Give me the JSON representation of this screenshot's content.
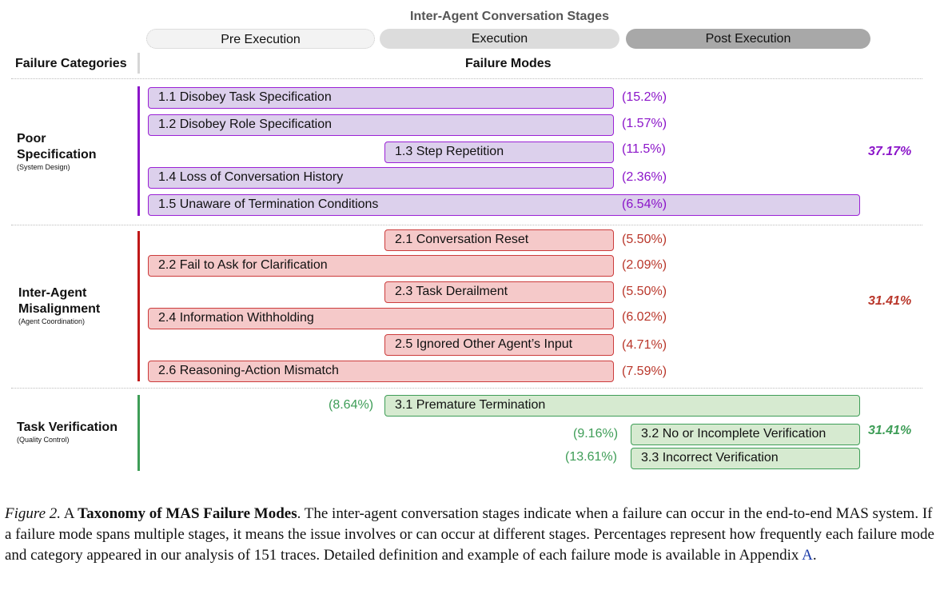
{
  "stages": {
    "title": "Inter-Agent Conversation Stages",
    "items": [
      "Pre Execution",
      "Execution",
      "Post Execution"
    ]
  },
  "headers": {
    "categories": "Failure Categories",
    "modes": "Failure Modes"
  },
  "categories": [
    {
      "title_line1": "Poor",
      "title_line2": "Specification",
      "subtitle": "(System Design)",
      "total": "37.17%",
      "color": "#8b15c9",
      "modes": [
        {
          "label": "1.1 Disobey Task Specification",
          "pct": "(15.2%)"
        },
        {
          "label": "1.2 Disobey Role Specification",
          "pct": "(1.57%)"
        },
        {
          "label": "1.3 Step Repetition",
          "pct": "(11.5%)"
        },
        {
          "label": "1.4 Loss of Conversation History",
          "pct": "(2.36%)"
        },
        {
          "label": "1.5 Unaware of Termination Conditions",
          "pct": "(6.54%)"
        }
      ]
    },
    {
      "title_line1": "Inter-Agent",
      "title_line2": "Misalignment",
      "subtitle": "(Agent Coordination)",
      "total": "31.41%",
      "color": "#b9362a",
      "modes": [
        {
          "label": "2.1 Conversation Reset",
          "pct": "(5.50%)"
        },
        {
          "label": "2.2 Fail to Ask for Clarification",
          "pct": "(2.09%)"
        },
        {
          "label": "2.3 Task Derailment",
          "pct": "(5.50%)"
        },
        {
          "label": "2.4 Information Withholding",
          "pct": "(6.02%)"
        },
        {
          "label": "2.5 Ignored Other Agent’s Input",
          "pct": "(4.71%)"
        },
        {
          "label": "2.6 Reasoning-Action Mismatch",
          "pct": "(7.59%)"
        }
      ]
    },
    {
      "title_line1": "Task Verification",
      "subtitle": "(Quality Control)",
      "total": "31.41%",
      "color": "#3e9d57",
      "modes": [
        {
          "label": "3.1  Premature Termination",
          "pct": "(8.64%)"
        },
        {
          "label": "3.2 No or Incomplete Verification",
          "pct": "(9.16%)"
        },
        {
          "label": "3.3 Incorrect Verification",
          "pct": "(13.61%)"
        }
      ]
    }
  ],
  "caption": {
    "fig_label": "Figure 2.",
    "pre": " A ",
    "bold": "Taxonomy of MAS Failure Modes",
    "text": ". The inter-agent conversation stages indicate when a failure can occur in the end-to-end MAS system. If a failure mode spans multiple stages, it means the issue involves or can occur at different stages. Percentages represent how frequently each failure mode and category appeared in our analysis of 151 traces. Detailed definition and example of each failure mode is available in Appendix ",
    "link": "A",
    "end": "."
  }
}
